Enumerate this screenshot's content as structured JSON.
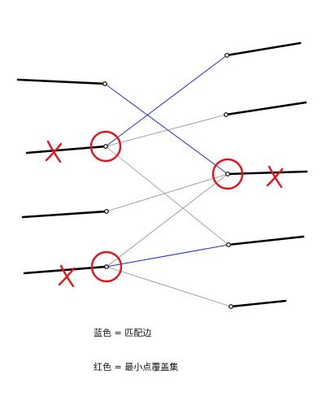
{
  "colors": {
    "background": "#ffffff",
    "segment": "#000000",
    "matching_edge": "#1f2fd6",
    "other_edge": "#8c8c8c",
    "cover_mark": "#e8121b"
  },
  "legend": {
    "matching_line": "蓝色 = 匹配边",
    "cover_line": "红色 = 最小点覆盖集"
  },
  "graph": {
    "left_nodes": [
      "L1",
      "L2",
      "L3",
      "L4"
    ],
    "right_nodes": [
      "R1",
      "R2",
      "R3",
      "R4",
      "R5"
    ],
    "edges": [
      {
        "from": "L1",
        "to": "R3",
        "type": "matching"
      },
      {
        "from": "L2",
        "to": "R1",
        "type": "matching"
      },
      {
        "from": "L2",
        "to": "R2",
        "type": "other"
      },
      {
        "from": "L2",
        "to": "R4",
        "type": "other"
      },
      {
        "from": "L3",
        "to": "R3",
        "type": "other"
      },
      {
        "from": "L4",
        "to": "R4",
        "type": "matching"
      },
      {
        "from": "L4",
        "to": "R3",
        "type": "other"
      },
      {
        "from": "L4",
        "to": "R5",
        "type": "other"
      }
    ],
    "min_vertex_cover": [
      "L2",
      "R3",
      "L4"
    ],
    "crossed_nodes": [
      "L2",
      "R3",
      "L4"
    ]
  }
}
